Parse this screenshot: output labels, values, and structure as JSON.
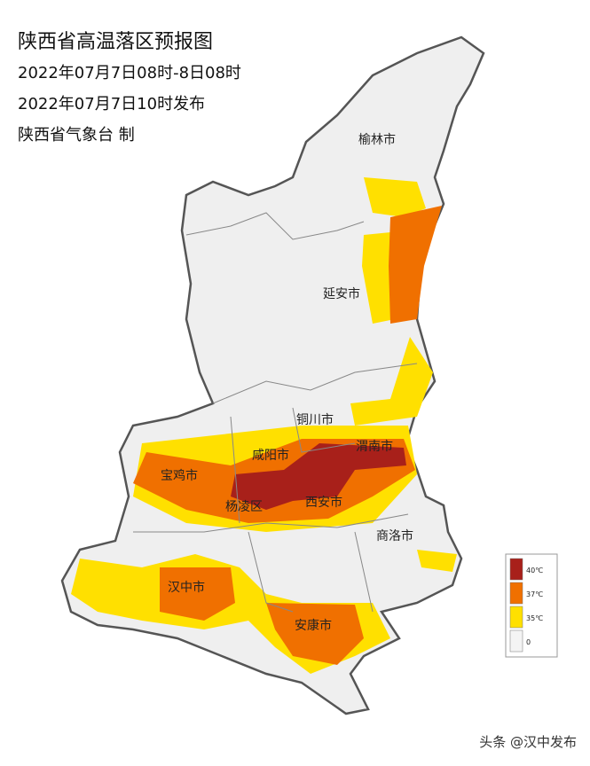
{
  "header": {
    "title": "陕西省高温落区预报图",
    "lines": [
      "2022年07月7日08时-8日08时",
      "2022年07月7日10时发布",
      "陕西省气象台 制"
    ]
  },
  "cities": [
    "榆林市",
    "延安市",
    "铜川市",
    "咸阳市",
    "渭南市",
    "宝鸡市",
    "杨凌区",
    "西安市",
    "商洛市",
    "汉中市",
    "安康市"
  ],
  "legend": [
    {
      "label": "40℃",
      "color": "#a8201a"
    },
    {
      "label": "37℃",
      "color": "#f07000"
    },
    {
      "label": "35℃",
      "color": "#ffe000"
    },
    {
      "label": "0",
      "color": "#f4f4f4"
    }
  ],
  "watermark": "头条 @汉中发布"
}
